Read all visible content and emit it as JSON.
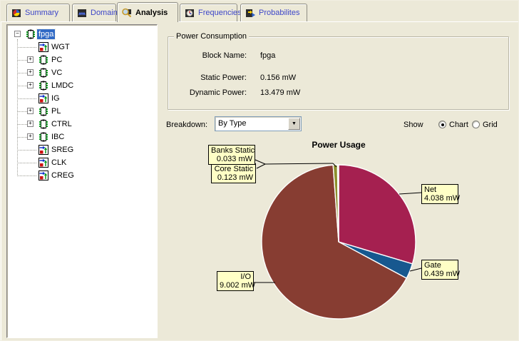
{
  "tabs": [
    {
      "label": "Summary",
      "icon": "summary-tab-icon",
      "active": false
    },
    {
      "label": "Domains",
      "icon": "domains-tab-icon",
      "active": false
    },
    {
      "label": "Analysis",
      "icon": "analysis-tab-icon",
      "active": true
    },
    {
      "label": "Frequencies",
      "icon": "frequencies-tab-icon",
      "active": false
    },
    {
      "label": "Probabilites",
      "icon": "probabilities-tab-icon",
      "active": false
    }
  ],
  "tree": {
    "items": [
      {
        "label": "fpga",
        "depth": 0,
        "icon": "chip",
        "expander": "minus",
        "selected": true
      },
      {
        "label": "WGT",
        "depth": 1,
        "icon": "gate",
        "expander": null,
        "selected": false
      },
      {
        "label": "PC",
        "depth": 1,
        "icon": "chip",
        "expander": "plus",
        "selected": false
      },
      {
        "label": "VC",
        "depth": 1,
        "icon": "chip",
        "expander": "plus",
        "selected": false
      },
      {
        "label": "LMDC",
        "depth": 1,
        "icon": "chip",
        "expander": "plus",
        "selected": false
      },
      {
        "label": "IG",
        "depth": 1,
        "icon": "gate",
        "expander": null,
        "selected": false
      },
      {
        "label": "PL",
        "depth": 1,
        "icon": "chip",
        "expander": "plus",
        "selected": false
      },
      {
        "label": "CTRL",
        "depth": 1,
        "icon": "chip",
        "expander": "plus",
        "selected": false
      },
      {
        "label": "IBC",
        "depth": 1,
        "icon": "chip",
        "expander": "plus",
        "selected": false
      },
      {
        "label": "SREG",
        "depth": 1,
        "icon": "gate",
        "expander": null,
        "selected": false
      },
      {
        "label": "CLK",
        "depth": 1,
        "icon": "gate",
        "expander": null,
        "selected": false
      },
      {
        "label": "CREG",
        "depth": 1,
        "icon": "gate",
        "expander": null,
        "selected": false
      }
    ]
  },
  "power_consumption": {
    "group_title": "Power Consumption",
    "fields": [
      {
        "label": "Block Name:",
        "value": "fpga"
      },
      {
        "label": "Static Power:",
        "value": "0.156 mW"
      },
      {
        "label": "Dynamic Power:",
        "value": "13.479 mW"
      }
    ]
  },
  "breakdown": {
    "label": "Breakdown:",
    "selected": "By Type"
  },
  "show": {
    "label": "Show",
    "options": [
      {
        "label": "Chart",
        "selected": true
      },
      {
        "label": "Grid",
        "selected": false
      }
    ]
  },
  "chart_data": {
    "type": "pie",
    "title": "Power Usage",
    "unit": "mW",
    "start_angle_deg": 0,
    "direction": "clockwise",
    "legend_style": "callout-boxes",
    "callout_bg": "#FFFFC6",
    "slices": [
      {
        "label": "Net",
        "value": 4.038,
        "value_label": "4.038 mW",
        "color": "#A52050"
      },
      {
        "label": "Gate",
        "value": 0.439,
        "value_label": "0.439 mW",
        "color": "#17588F"
      },
      {
        "label": "I/O",
        "value": 9.002,
        "value_label": "9.002 mW",
        "color": "#873D32"
      },
      {
        "label": "Core Static",
        "value": 0.123,
        "value_label": "0.123 mW",
        "color": "#8C8F2C"
      },
      {
        "label": "Banks Static",
        "value": 0.033,
        "value_label": "0.033 mW",
        "color": "#CBD69E"
      }
    ]
  },
  "colors": {
    "panel_bg": "#ECE9D8",
    "selection": "#316AC5",
    "tab_text": "#3C45C8"
  }
}
